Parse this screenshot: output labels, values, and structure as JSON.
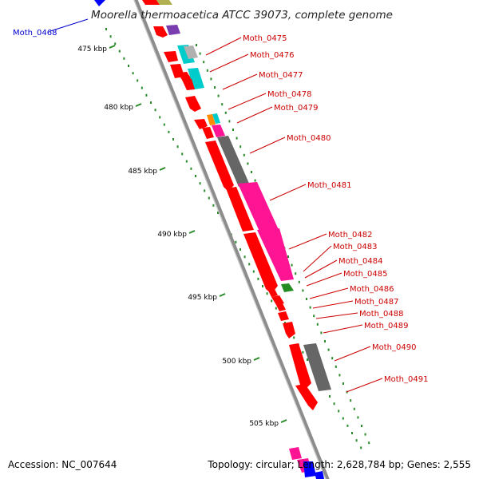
{
  "title": "Moorella thermoacetica ATCC 39073, complete genome",
  "accession_text": "Accession: NC_007644",
  "topology_text": "Topology: circular; Length: 2,628,784 bp; Genes: 2,555",
  "colors": {
    "forward_gene": "#ff0000",
    "reverse_gene_cog": "#ff1493",
    "label_red": "#cc0000",
    "label_blue": "#0000cc",
    "backbone": "#8c8c8c",
    "gc_dots": "#2a8a2a"
  },
  "ticks": [
    "475 kbp",
    "480 kbp",
    "485 kbp",
    "490 kbp",
    "495 kbp",
    "500 kbp",
    "505 kbp"
  ],
  "gene_labels": [
    {
      "text": "Moth_0468",
      "color": "blue"
    },
    {
      "text": "Moth_0475",
      "color": "red"
    },
    {
      "text": "Moth_0476",
      "color": "red"
    },
    {
      "text": "Moth_0477",
      "color": "red"
    },
    {
      "text": "Moth_0478",
      "color": "red"
    },
    {
      "text": "Moth_0479",
      "color": "red"
    },
    {
      "text": "Moth_0480",
      "color": "red"
    },
    {
      "text": "Moth_0481",
      "color": "red"
    },
    {
      "text": "Moth_0482",
      "color": "red"
    },
    {
      "text": "Moth_0483",
      "color": "red"
    },
    {
      "text": "Moth_0484",
      "color": "red"
    },
    {
      "text": "Moth_0485",
      "color": "red"
    },
    {
      "text": "Moth_0486",
      "color": "red"
    },
    {
      "text": "Moth_0487",
      "color": "red"
    },
    {
      "text": "Moth_0488",
      "color": "red"
    },
    {
      "text": "Moth_0489",
      "color": "red"
    },
    {
      "text": "Moth_0490",
      "color": "red"
    },
    {
      "text": "Moth_0491",
      "color": "red"
    }
  ]
}
